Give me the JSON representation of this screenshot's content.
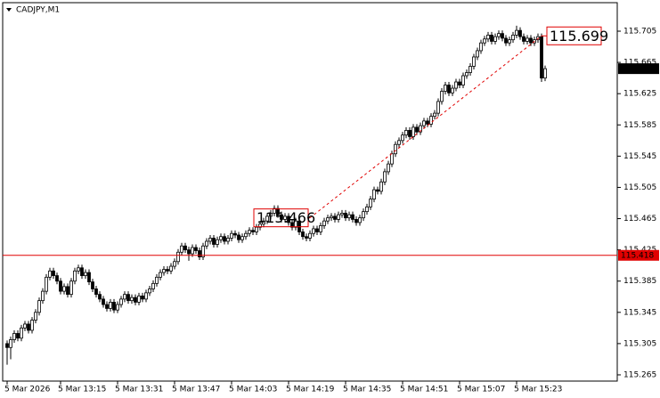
{
  "chart_data": {
    "type": "candlestick",
    "title": "CADJPY,M1",
    "candles": [
      [
        115.305,
        115.309,
        115.278,
        115.3
      ],
      [
        115.3,
        115.314,
        115.285,
        115.31
      ],
      [
        115.31,
        115.322,
        115.306,
        115.318
      ],
      [
        115.318,
        115.322,
        115.308,
        115.312
      ],
      [
        115.312,
        115.329,
        115.308,
        115.325
      ],
      [
        115.325,
        115.334,
        115.321,
        115.33
      ],
      [
        115.33,
        115.334,
        115.318,
        115.322
      ],
      [
        115.322,
        115.339,
        115.318,
        115.335
      ],
      [
        115.335,
        115.349,
        115.331,
        115.345
      ],
      [
        115.345,
        115.364,
        115.341,
        115.36
      ],
      [
        115.36,
        115.376,
        115.356,
        115.372
      ],
      [
        115.372,
        115.394,
        115.368,
        115.39
      ],
      [
        115.39,
        115.402,
        115.386,
        115.398
      ],
      [
        115.398,
        115.402,
        115.388,
        115.392
      ],
      [
        115.392,
        115.396,
        115.381,
        115.385
      ],
      [
        115.385,
        115.389,
        115.368,
        115.372
      ],
      [
        115.372,
        115.382,
        115.368,
        115.378
      ],
      [
        115.378,
        115.382,
        115.364,
        115.368
      ],
      [
        115.368,
        115.389,
        115.364,
        115.385
      ],
      [
        115.385,
        115.402,
        115.381,
        115.398
      ],
      [
        115.398,
        115.406,
        115.394,
        115.402
      ],
      [
        115.402,
        115.406,
        115.388,
        115.392
      ],
      [
        115.392,
        115.4,
        115.388,
        115.396
      ],
      [
        115.396,
        115.4,
        115.38,
        115.384
      ],
      [
        115.384,
        115.388,
        115.371,
        115.375
      ],
      [
        115.375,
        115.379,
        115.364,
        115.368
      ],
      [
        115.368,
        115.372,
        115.358,
        115.362
      ],
      [
        115.362,
        115.366,
        115.351,
        115.355
      ],
      [
        115.355,
        115.359,
        115.346,
        115.35
      ],
      [
        115.35,
        115.362,
        115.346,
        115.358
      ],
      [
        115.358,
        115.362,
        115.344,
        115.348
      ],
      [
        115.348,
        115.359,
        115.344,
        115.355
      ],
      [
        115.355,
        115.366,
        115.351,
        115.362
      ],
      [
        115.362,
        115.372,
        115.358,
        115.368
      ],
      [
        115.368,
        115.372,
        115.356,
        115.36
      ],
      [
        115.36,
        115.368,
        115.356,
        115.364
      ],
      [
        115.364,
        115.368,
        115.354,
        115.358
      ],
      [
        115.358,
        115.37,
        115.354,
        115.366
      ],
      [
        115.366,
        115.37,
        115.358,
        115.362
      ],
      [
        115.362,
        115.374,
        115.358,
        115.37
      ],
      [
        115.37,
        115.379,
        115.366,
        115.375
      ],
      [
        115.375,
        115.386,
        115.371,
        115.382
      ],
      [
        115.382,
        115.394,
        115.378,
        115.39
      ],
      [
        115.39,
        115.4,
        115.386,
        115.396
      ],
      [
        115.396,
        115.404,
        115.392,
        115.4
      ],
      [
        115.4,
        115.404,
        115.394,
        115.398
      ],
      [
        115.398,
        115.408,
        115.394,
        115.404
      ],
      [
        115.404,
        115.414,
        115.4,
        115.41
      ],
      [
        115.41,
        115.426,
        115.406,
        115.422
      ],
      [
        115.422,
        115.434,
        115.418,
        115.43
      ],
      [
        115.43,
        115.434,
        115.421,
        115.425
      ],
      [
        115.425,
        115.429,
        115.411,
        115.42
      ],
      [
        115.42,
        115.432,
        115.416,
        115.428
      ],
      [
        115.428,
        115.432,
        115.42,
        115.424
      ],
      [
        115.424,
        115.428,
        115.412,
        115.416
      ],
      [
        115.416,
        115.434,
        115.412,
        115.43
      ],
      [
        115.43,
        115.44,
        115.426,
        115.436
      ],
      [
        115.436,
        115.444,
        115.432,
        115.44
      ],
      [
        115.44,
        115.444,
        115.428,
        115.432
      ],
      [
        115.432,
        115.442,
        115.428,
        115.438
      ],
      [
        115.438,
        115.446,
        115.434,
        115.442
      ],
      [
        115.442,
        115.446,
        115.432,
        115.436
      ],
      [
        115.436,
        115.444,
        115.432,
        115.44
      ],
      [
        115.44,
        115.45,
        115.436,
        115.446
      ],
      [
        115.446,
        115.45,
        115.44,
        115.444
      ],
      [
        115.444,
        115.448,
        115.434,
        115.438
      ],
      [
        115.438,
        115.446,
        115.434,
        115.442
      ],
      [
        115.442,
        115.45,
        115.438,
        115.446
      ],
      [
        115.446,
        115.454,
        115.442,
        115.45
      ],
      [
        115.45,
        115.454,
        115.444,
        115.448
      ],
      [
        115.448,
        115.458,
        115.444,
        115.454
      ],
      [
        115.454,
        115.462,
        115.45,
        115.458
      ],
      [
        115.458,
        115.466,
        115.454,
        115.462
      ],
      [
        115.462,
        115.472,
        115.458,
        115.468
      ],
      [
        115.468,
        115.476,
        115.464,
        115.472
      ],
      [
        115.472,
        115.482,
        115.468,
        115.478
      ],
      [
        115.478,
        115.482,
        115.466,
        115.47
      ],
      [
        115.47,
        115.474,
        115.46,
        115.464
      ],
      [
        115.464,
        115.472,
        115.46,
        115.468
      ],
      [
        115.468,
        115.472,
        115.456,
        115.46
      ],
      [
        115.46,
        115.464,
        115.45,
        115.454
      ],
      [
        115.454,
        115.466,
        115.45,
        115.462
      ],
      [
        115.462,
        115.466,
        115.444,
        115.448
      ],
      [
        115.448,
        115.452,
        115.438,
        115.442
      ],
      [
        115.442,
        115.446,
        115.436,
        115.44
      ],
      [
        115.44,
        115.45,
        115.436,
        115.446
      ],
      [
        115.446,
        115.456,
        115.442,
        115.452
      ],
      [
        115.452,
        115.456,
        115.444,
        115.448
      ],
      [
        115.448,
        115.46,
        115.444,
        115.456
      ],
      [
        115.456,
        115.466,
        115.452,
        115.462
      ],
      [
        115.462,
        115.47,
        115.458,
        115.466
      ],
      [
        115.466,
        115.472,
        115.462,
        115.468
      ],
      [
        115.468,
        115.472,
        115.46,
        115.464
      ],
      [
        115.464,
        115.474,
        115.46,
        115.47
      ],
      [
        115.47,
        115.476,
        115.466,
        115.472
      ],
      [
        115.472,
        115.476,
        115.462,
        115.466
      ],
      [
        115.466,
        115.474,
        115.462,
        115.47
      ],
      [
        115.47,
        115.474,
        115.46,
        115.464
      ],
      [
        115.464,
        115.468,
        115.456,
        115.46
      ],
      [
        115.46,
        115.47,
        115.456,
        115.466
      ],
      [
        115.466,
        115.478,
        115.462,
        115.474
      ],
      [
        115.474,
        115.484,
        115.47,
        115.48
      ],
      [
        115.48,
        115.494,
        115.476,
        115.49
      ],
      [
        115.49,
        115.506,
        115.486,
        115.502
      ],
      [
        115.502,
        115.506,
        115.496,
        115.5
      ],
      [
        115.5,
        115.516,
        115.496,
        115.512
      ],
      [
        115.512,
        115.529,
        115.508,
        115.525
      ],
      [
        115.525,
        115.539,
        115.521,
        115.535
      ],
      [
        115.535,
        115.552,
        115.531,
        115.548
      ],
      [
        115.548,
        115.564,
        115.544,
        115.56
      ],
      [
        115.56,
        115.569,
        115.556,
        115.565
      ],
      [
        115.565,
        115.576,
        115.561,
        115.572
      ],
      [
        115.572,
        115.582,
        115.568,
        115.578
      ],
      [
        115.578,
        115.582,
        115.566,
        115.57
      ],
      [
        115.57,
        115.586,
        115.566,
        115.582
      ],
      [
        115.582,
        115.586,
        115.572,
        115.576
      ],
      [
        115.576,
        115.588,
        115.572,
        115.584
      ],
      [
        115.584,
        115.594,
        115.58,
        115.59
      ],
      [
        115.59,
        115.594,
        115.582,
        115.586
      ],
      [
        115.586,
        115.6,
        115.582,
        115.596
      ],
      [
        115.596,
        115.604,
        115.592,
        115.6
      ],
      [
        115.6,
        115.619,
        115.596,
        115.615
      ],
      [
        115.615,
        115.632,
        115.611,
        115.628
      ],
      [
        115.628,
        115.64,
        115.624,
        115.636
      ],
      [
        115.636,
        115.64,
        115.622,
        115.626
      ],
      [
        115.626,
        115.636,
        115.622,
        115.632
      ],
      [
        115.632,
        115.644,
        115.628,
        115.64
      ],
      [
        115.64,
        115.644,
        115.632,
        115.636
      ],
      [
        115.636,
        115.652,
        115.632,
        115.648
      ],
      [
        115.648,
        115.656,
        115.644,
        115.652
      ],
      [
        115.652,
        115.664,
        115.648,
        115.66
      ],
      [
        115.66,
        115.676,
        115.656,
        115.672
      ],
      [
        115.672,
        115.684,
        115.668,
        115.68
      ],
      [
        115.68,
        115.694,
        115.676,
        115.69
      ],
      [
        115.69,
        115.699,
        115.686,
        115.695
      ],
      [
        115.695,
        115.704,
        115.691,
        115.7
      ],
      [
        115.7,
        115.704,
        115.688,
        115.692
      ],
      [
        115.692,
        115.702,
        115.688,
        115.698
      ],
      [
        115.698,
        115.706,
        115.694,
        115.702
      ],
      [
        115.702,
        115.706,
        115.692,
        115.696
      ],
      [
        115.696,
        115.7,
        115.686,
        115.69
      ],
      [
        115.69,
        115.698,
        115.686,
        115.694
      ],
      [
        115.694,
        115.704,
        115.69,
        115.7
      ],
      [
        115.7,
        115.712,
        115.696,
        115.706
      ],
      [
        115.706,
        115.71,
        115.694,
        115.698
      ],
      [
        115.698,
        115.702,
        115.688,
        115.692
      ],
      [
        115.692,
        115.7,
        115.688,
        115.696
      ],
      [
        115.696,
        115.7,
        115.686,
        115.69
      ],
      [
        115.69,
        115.698,
        115.686,
        115.694
      ],
      [
        115.694,
        115.702,
        115.69,
        115.698
      ],
      [
        115.698,
        115.702,
        115.64,
        115.645
      ],
      [
        115.645,
        115.661,
        115.641,
        115.657
      ]
    ],
    "xlim": [
      -1.25,
      171.25
    ],
    "xticks": [
      {
        "value": 0,
        "label": "5 Mar 2026"
      },
      {
        "value": 15,
        "label": "5 Mar 13:15"
      },
      {
        "value": 31,
        "label": "5 Mar 13:31"
      },
      {
        "value": 47,
        "label": "5 Mar 13:47"
      },
      {
        "value": 63,
        "label": "5 Mar 14:03"
      },
      {
        "value": 79,
        "label": "5 Mar 14:19"
      },
      {
        "value": 95,
        "label": "5 Mar 14:35"
      },
      {
        "value": 111,
        "label": "5 Mar 14:51"
      },
      {
        "value": 127,
        "label": "5 Mar 15:07"
      },
      {
        "value": 143,
        "label": "5 Mar 15:23"
      }
    ],
    "ylim": [
      115.257,
      115.7415
    ],
    "yticks": [
      115.705,
      115.665,
      115.625,
      115.585,
      115.545,
      115.505,
      115.465,
      115.425,
      115.385,
      115.345,
      115.305,
      115.265
    ],
    "hline": {
      "value": 115.418,
      "color": "#e00000"
    },
    "current_price": 115.657,
    "annotations": [
      {
        "value": 115.466,
        "x": 85
      },
      {
        "value": 115.699,
        "x": 150
      }
    ]
  }
}
